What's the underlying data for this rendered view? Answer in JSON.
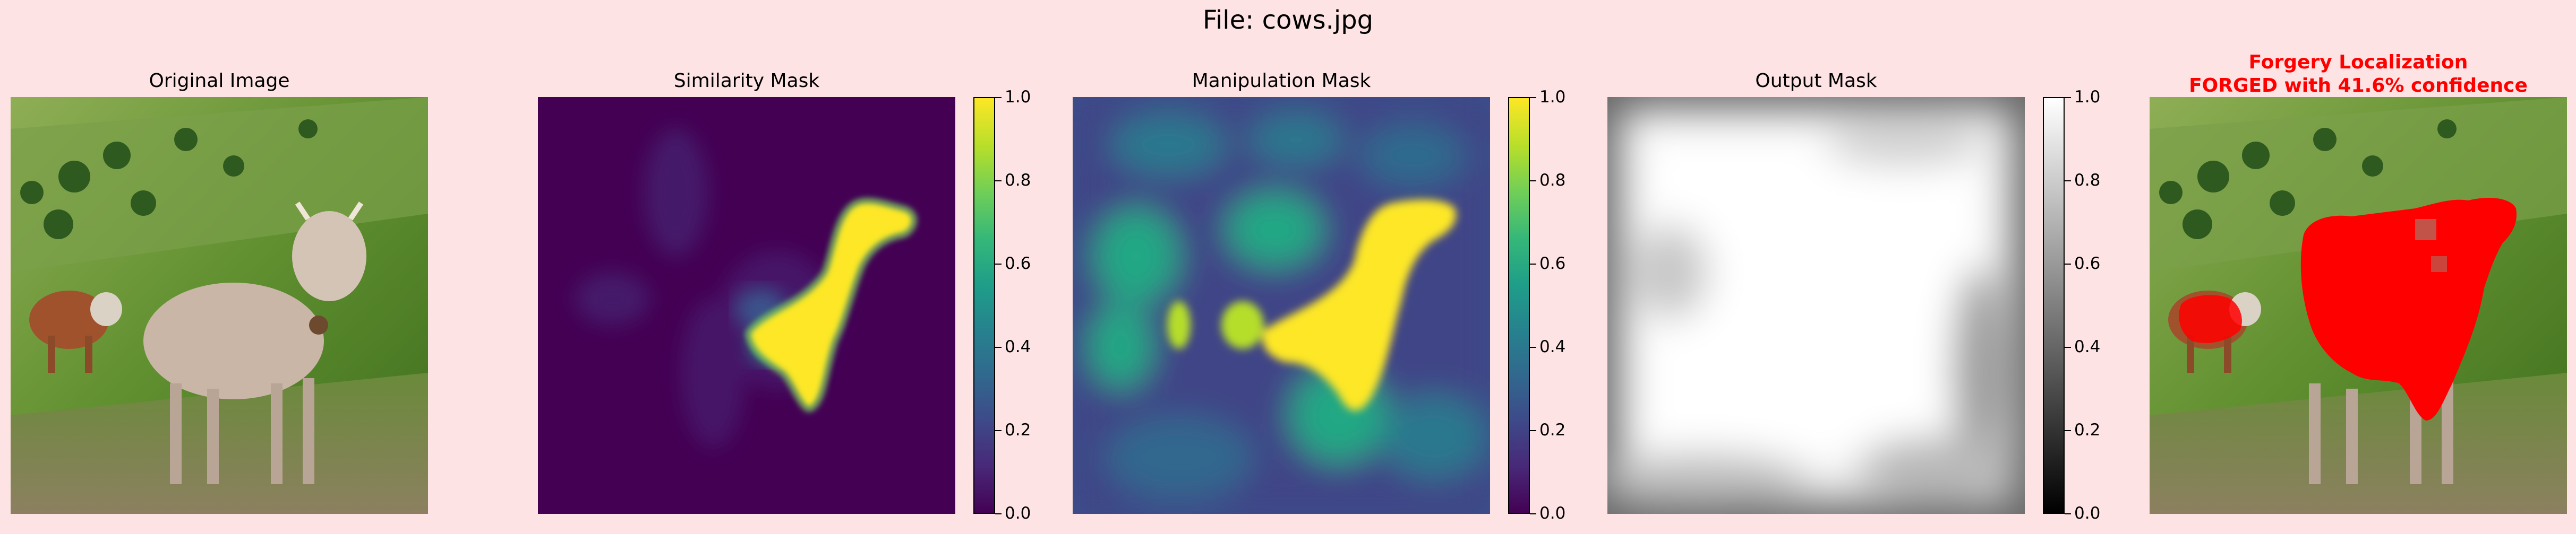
{
  "figure": {
    "suptitle": "File: cows.jpg"
  },
  "chart_data": {
    "type": "heatmap",
    "panels": [
      {
        "title": "Original Image",
        "kind": "image"
      },
      {
        "title": "Similarity Mask",
        "kind": "heatmap",
        "colormap": "viridis",
        "colorbar_ticks": [
          "0.0",
          "0.2",
          "0.4",
          "0.6",
          "0.8",
          "1.0"
        ],
        "range": [
          0,
          1
        ]
      },
      {
        "title": "Manipulation Mask",
        "kind": "heatmap",
        "colormap": "viridis",
        "colorbar_ticks": [
          "0.0",
          "0.2",
          "0.4",
          "0.6",
          "0.8",
          "1.0"
        ],
        "range": [
          0,
          1
        ]
      },
      {
        "title": "Output Mask",
        "kind": "heatmap",
        "colormap": "gray",
        "colorbar_ticks": [
          "0.0",
          "0.2",
          "0.4",
          "0.6",
          "0.8",
          "1.0"
        ],
        "range": [
          0,
          1
        ]
      },
      {
        "title_line1": "Forgery Localization",
        "title_line2": "FORGED with 41.6% confidence",
        "kind": "overlay",
        "overlay_color": "#ff0000",
        "title_color": "#ff0000",
        "confidence_percent": 41.6
      }
    ]
  }
}
